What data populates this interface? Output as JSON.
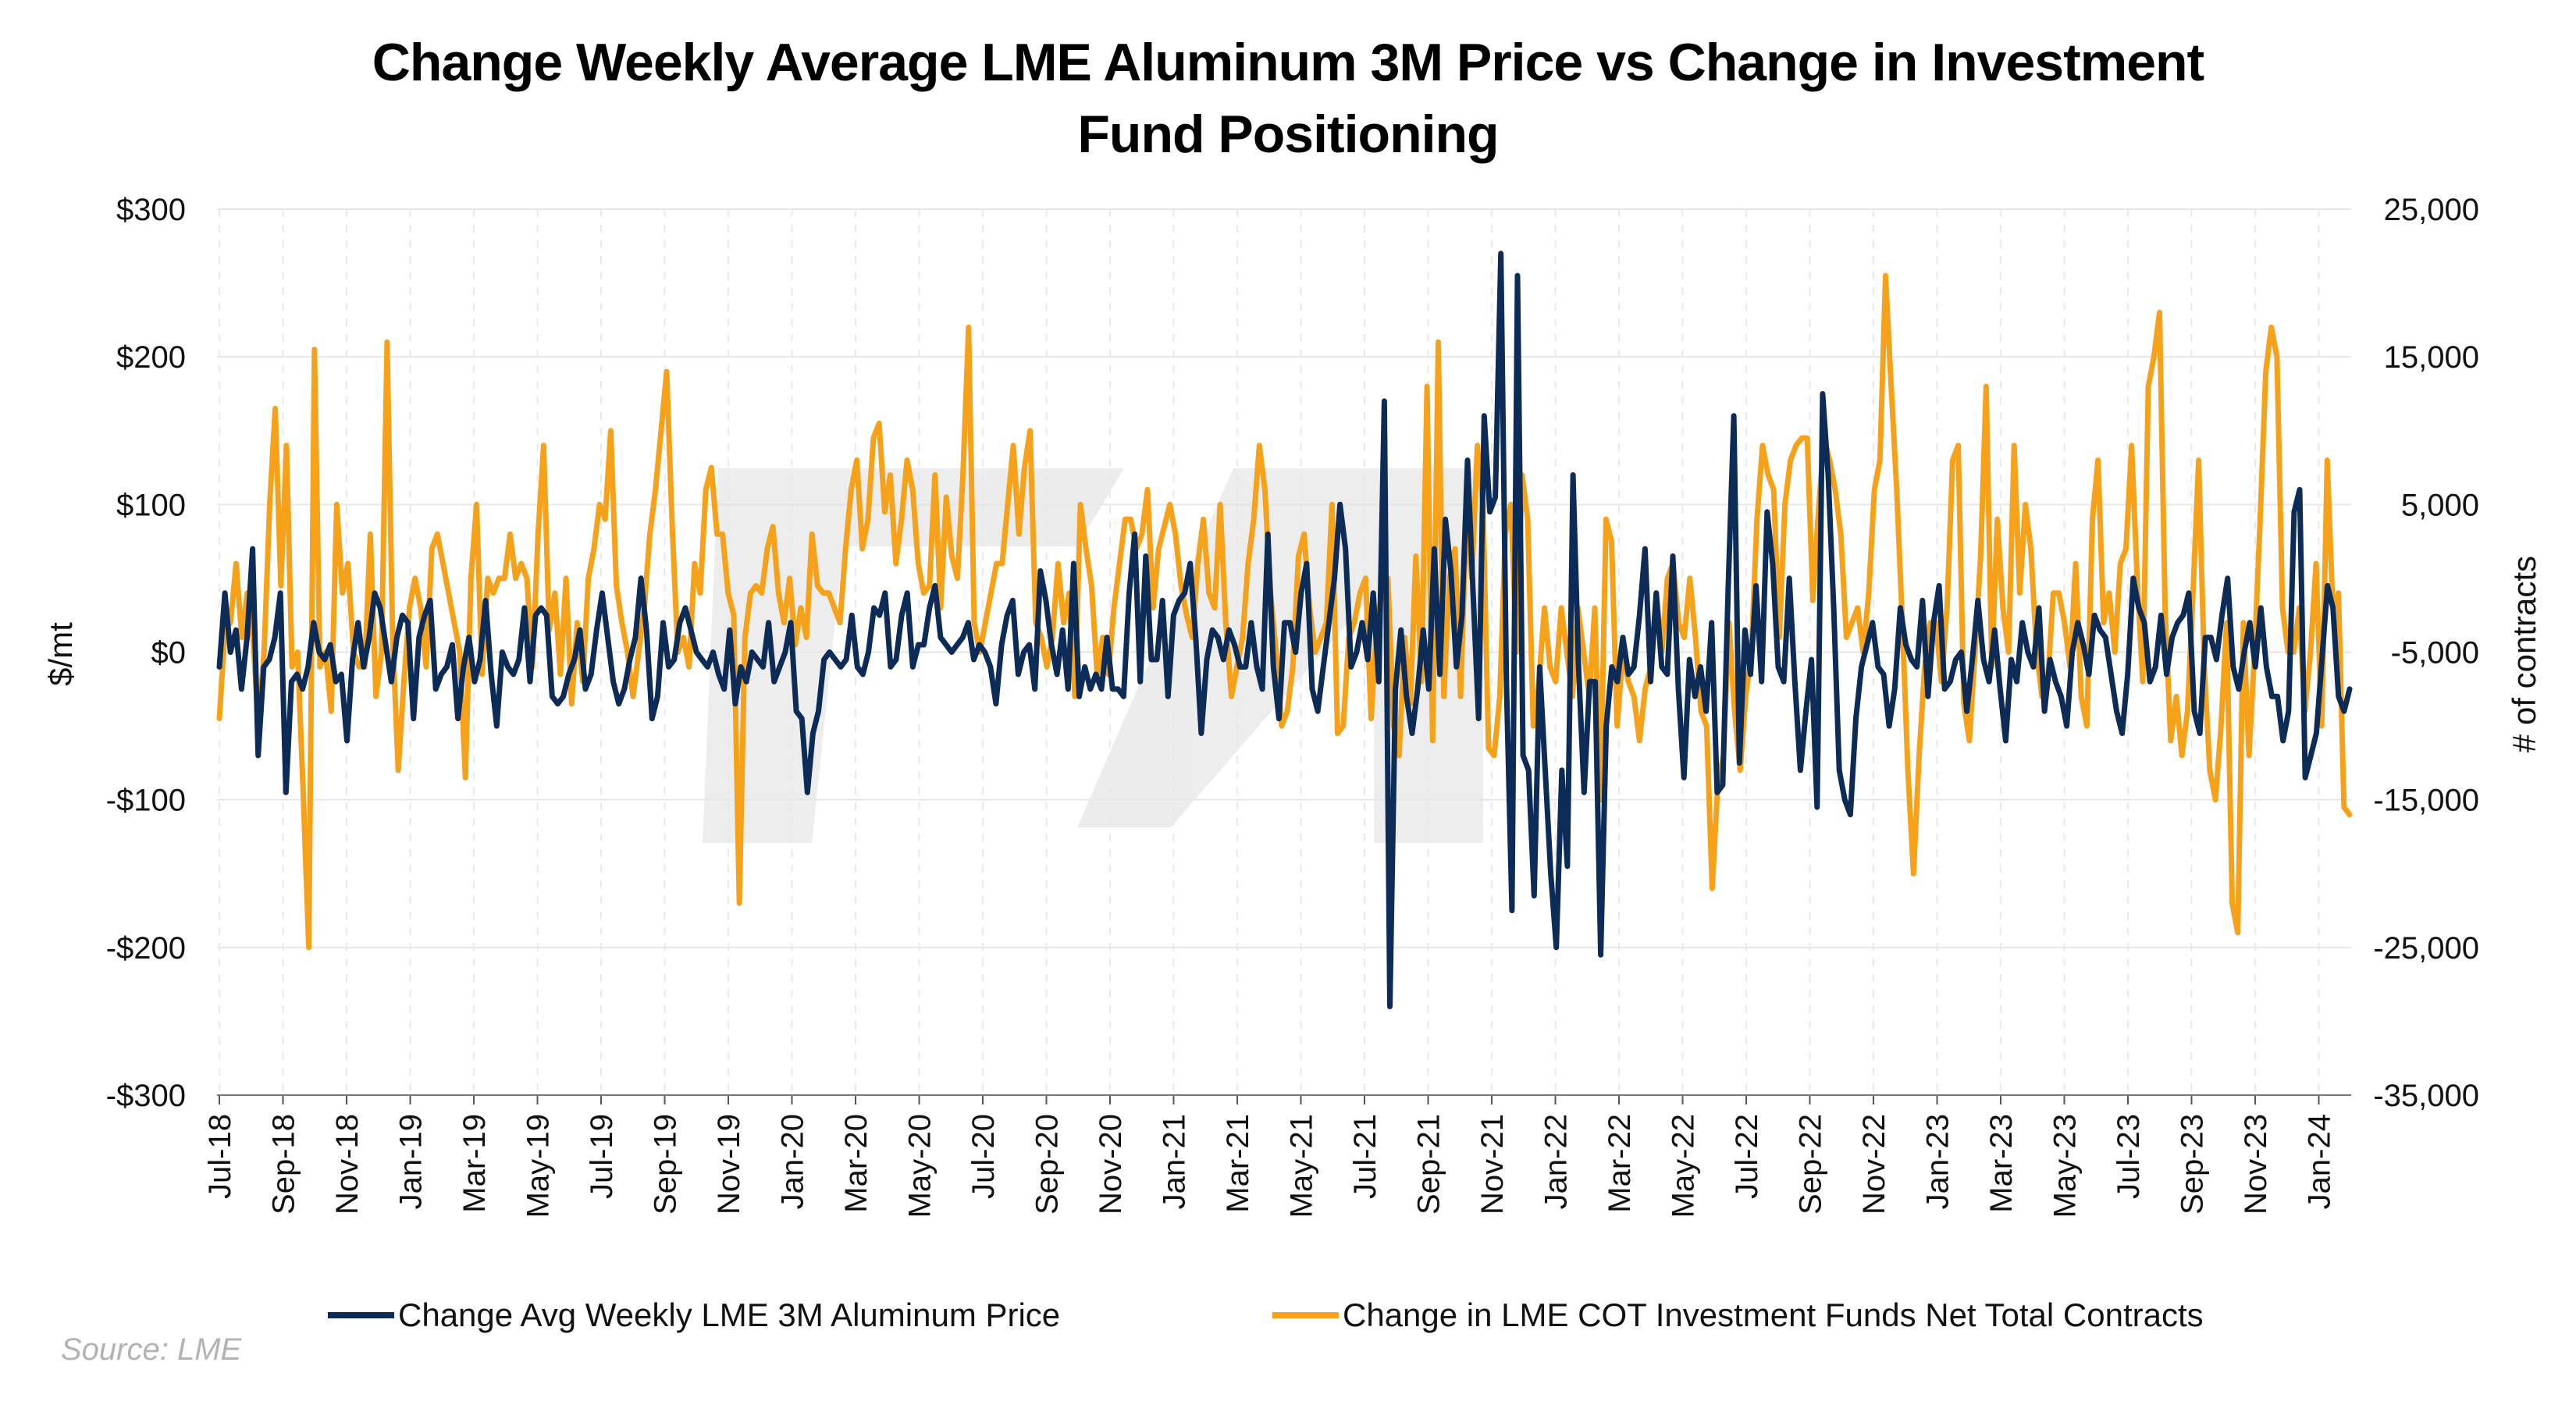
{
  "chart_data": {
    "type": "line",
    "title": "Change Weekly Average LME Aluminum 3M Price vs Change in Investment Fund Positioning",
    "title_lines": [
      "Change Weekly Average LME Aluminum 3M Price vs Change in Investment",
      "Fund Positioning"
    ],
    "ylabel_left": "$/mt",
    "ylabel_right": "# of contracts",
    "ylim_left": [
      -300,
      300
    ],
    "ylim_right": [
      -35000,
      25000
    ],
    "left_ticks": [
      300,
      200,
      100,
      0,
      -100,
      -200,
      -300
    ],
    "left_tick_labels": [
      "$300",
      "$200",
      "$100",
      "$0",
      "-$100",
      "-$200",
      "-$300"
    ],
    "right_ticks": [
      25000,
      15000,
      5000,
      -5000,
      -15000,
      -25000,
      -35000
    ],
    "right_tick_labels": [
      "25,000",
      "15,000",
      "5,000",
      "-5,000",
      "-15,000",
      "-25,000",
      "-35,000"
    ],
    "x_tick_labels": [
      "Jul-18",
      "Sep-18",
      "Nov-18",
      "Jan-19",
      "Mar-19",
      "May-19",
      "Jul-19",
      "Sep-19",
      "Nov-19",
      "Jan-20",
      "Mar-20",
      "May-20",
      "Jul-20",
      "Sep-20",
      "Nov-20",
      "Jan-21",
      "Mar-21",
      "May-21",
      "Jul-21",
      "Sep-21",
      "Nov-21",
      "Jan-22",
      "Mar-22",
      "May-22",
      "Jul-22",
      "Sep-22",
      "Nov-22",
      "Jan-23",
      "Mar-23",
      "May-23",
      "Jul-23",
      "Sep-23",
      "Nov-23",
      "Jan-24"
    ],
    "x_range": [
      "Jul-18",
      "Feb-24"
    ],
    "grid": true,
    "legend_position": "bottom",
    "series": [
      {
        "name": "Change Avg Weekly LME 3M Aluminum Price",
        "axis": "left",
        "color": "#0d2b57",
        "x_start": "Jul-18",
        "x_end": "Feb-24",
        "values": [
          -10,
          40,
          0,
          15,
          -25,
          10,
          70,
          -70,
          -10,
          -5,
          10,
          40,
          -95,
          -20,
          -15,
          -25,
          -10,
          20,
          0,
          -5,
          5,
          -20,
          -15,
          -60,
          -5,
          20,
          -10,
          10,
          40,
          30,
          5,
          -20,
          10,
          25,
          20,
          -45,
          10,
          25,
          35,
          -25,
          -15,
          -10,
          5,
          -45,
          -10,
          10,
          -20,
          -5,
          35,
          -15,
          -50,
          0,
          -10,
          -15,
          -5,
          30,
          -20,
          25,
          30,
          25,
          -30,
          -35,
          -30,
          -15,
          -5,
          15,
          -25,
          -15,
          15,
          40,
          10,
          -20,
          -35,
          -25,
          -5,
          10,
          50,
          15,
          -45,
          -30,
          20,
          -10,
          -5,
          20,
          30,
          15,
          0,
          -5,
          -10,
          0,
          -15,
          -25,
          15,
          -35,
          -10,
          -20,
          0,
          -5,
          -10,
          20,
          -20,
          -10,
          0,
          20,
          -40,
          -45,
          -95,
          -55,
          -40,
          -5,
          0,
          -5,
          -10,
          -5,
          25,
          -10,
          -15,
          0,
          30,
          25,
          40,
          -10,
          -5,
          25,
          40,
          -10,
          5,
          5,
          30,
          45,
          10,
          5,
          0,
          5,
          10,
          20,
          -5,
          5,
          0,
          -10,
          -35,
          5,
          25,
          35,
          -15,
          0,
          5,
          -25,
          55,
          35,
          5,
          -15,
          15,
          -25,
          60,
          -30,
          -10,
          -25,
          -15,
          -25,
          10,
          -25,
          -25,
          -30,
          40,
          80,
          -20,
          65,
          -5,
          -5,
          35,
          -30,
          25,
          35,
          40,
          60,
          10,
          -55,
          -5,
          15,
          10,
          -5,
          15,
          5,
          -10,
          -10,
          20,
          -10,
          -25,
          80,
          -10,
          -45,
          20,
          20,
          0,
          40,
          60,
          -25,
          -40,
          -10,
          20,
          50,
          100,
          70,
          -10,
          0,
          20,
          -5,
          40,
          -20,
          170,
          -240,
          -25,
          15,
          -30,
          -55,
          -25,
          15,
          -25,
          70,
          -15,
          90,
          55,
          -10,
          25,
          130,
          40,
          -45,
          160,
          95,
          105,
          270,
          -20,
          -175,
          255,
          -70,
          -80,
          -165,
          -10,
          -80,
          -150,
          -200,
          -80,
          -145,
          120,
          -10,
          -95,
          -20,
          -20,
          -205,
          -50,
          -10,
          -20,
          10,
          -15,
          -10,
          25,
          70,
          -20,
          40,
          -10,
          -15,
          65,
          -25,
          -85,
          -5,
          -30,
          -10,
          -40,
          20,
          -95,
          -90,
          45,
          160,
          -75,
          15,
          -15,
          45,
          -20,
          95,
          60,
          -10,
          -20,
          50,
          -20,
          -80,
          -40,
          -5,
          -105,
          175,
          120,
          30,
          -80,
          -100,
          -110,
          -45,
          -10,
          5,
          20,
          -10,
          -15,
          -50,
          -25,
          30,
          5,
          -5,
          -10,
          35,
          -30,
          20,
          45,
          -25,
          -20,
          -5,
          0,
          -40,
          -5,
          35,
          -5,
          -20,
          15,
          -25,
          -60,
          -5,
          -20,
          20,
          0,
          -10,
          30,
          -40,
          -5,
          -20,
          -30,
          -50,
          0,
          20,
          5,
          -15,
          25,
          15,
          10,
          -15,
          -40,
          -55,
          -15,
          50,
          30,
          20,
          -20,
          -10,
          25,
          -15,
          10,
          20,
          25,
          40,
          -40,
          -55,
          10,
          10,
          -5,
          25,
          50,
          -10,
          -25,
          0,
          20,
          -10,
          30,
          -10,
          -30,
          -30,
          -60,
          -40,
          95,
          110,
          -85,
          -70,
          -55,
          -5,
          45,
          30,
          -30,
          -40,
          -25
        ]
      },
      {
        "name": "Change in LME COT Investment Funds Net Total Contracts",
        "axis": "right",
        "color": "#f5a11a",
        "x_start": "Jul-18",
        "x_end": "Feb-24",
        "values": [
          -9500,
          -3500,
          -3000,
          1000,
          -4000,
          -1000,
          -4000,
          -10000,
          -5000,
          5000,
          11500,
          -500,
          9000,
          -6000,
          -5000,
          -14500,
          -25000,
          15500,
          -6000,
          -5000,
          -9000,
          5000,
          -1000,
          1000,
          -5000,
          -6000,
          -6000,
          3000,
          -8000,
          -5000,
          16000,
          -4000,
          -13000,
          -7000,
          -2000,
          0,
          -2000,
          -6000,
          2000,
          3000,
          1000,
          -1000,
          -3000,
          -5000,
          -13500,
          0,
          5000,
          -6500,
          0,
          -1000,
          0,
          0,
          3000,
          0,
          1000,
          0,
          -6000,
          3000,
          9000,
          -3500,
          -1000,
          -6500,
          0,
          -8500,
          -3000,
          -7000,
          0,
          2000,
          5000,
          4000,
          10000,
          -500,
          -3000,
          -5000,
          -8000,
          -5000,
          -2000,
          3000,
          6000,
          10000,
          14000,
          3500,
          -5000,
          -4000,
          -6000,
          1000,
          -1000,
          6000,
          7500,
          3000,
          3000,
          -1000,
          -2500,
          -22000,
          -4000,
          -1000,
          -500,
          -1000,
          2000,
          3500,
          -1000,
          -3000,
          0,
          -4500,
          -2000,
          -4000,
          3000,
          -500,
          -1000,
          -1000,
          -2000,
          -3000,
          2000,
          6000,
          8000,
          2000,
          4000,
          9500,
          10500,
          4500,
          7000,
          1000,
          4000,
          8000,
          6000,
          1000,
          -1000,
          -500,
          7000,
          -2000,
          5500,
          1500,
          0,
          7000,
          17000,
          -3000,
          -5000,
          -3000,
          -1000,
          1000,
          1000,
          5000,
          9000,
          3000,
          7500,
          10000,
          -3000,
          -4000,
          -6000,
          -4000,
          1000,
          -3000,
          -1000,
          -8000,
          5000,
          2000,
          -500,
          -6500,
          -4000,
          -6500,
          -2000,
          1000,
          4000,
          4000,
          2000,
          3000,
          6000,
          -2000,
          2000,
          3500,
          5000,
          3000,
          -500,
          -2500,
          -4000,
          1000,
          4000,
          -1000,
          -2000,
          5000,
          -3000,
          -8000,
          -6000,
          -4000,
          1000,
          4000,
          9000,
          6000,
          -1000,
          -5000,
          -10000,
          -9000,
          -6000,
          1500,
          3000,
          -2000,
          -5000,
          -4000,
          -3000,
          5000,
          -10500,
          -10000,
          -4000,
          -3000,
          -1000,
          0,
          -9500,
          -3000,
          -1000,
          0,
          -10000,
          -12000,
          -4000,
          -8500,
          1500,
          -7000,
          13000,
          -11000,
          16000,
          -8000,
          0,
          2000,
          -8000,
          4000,
          0,
          9000,
          5000,
          -11500,
          -12000,
          -8000,
          3000,
          5000,
          -5000,
          7000,
          4000,
          -10000,
          -7000,
          -2000,
          -6000,
          -7000,
          -2000,
          -5000,
          -8000,
          -2000,
          -5000,
          -8000,
          -2000,
          -15000,
          4000,
          2500,
          -10000,
          -5000,
          -7000,
          -8000,
          -11000,
          -7500,
          -6000,
          -1000,
          -5000,
          0,
          1000,
          -3000,
          -4000,
          0,
          -4000,
          -9000,
          -10000,
          -21000,
          -14000,
          -12000,
          -3000,
          -9000,
          -13000,
          -8000,
          -5000,
          4000,
          9000,
          7000,
          6000,
          -4000,
          5000,
          8000,
          9000,
          9500,
          9500,
          -1500,
          4500,
          9500,
          8000,
          6000,
          3000,
          -4000,
          -3000,
          -2000,
          -5000,
          -1000,
          6000,
          8000,
          20500,
          13000,
          6000,
          -3000,
          -13000,
          -20000,
          -12000,
          -6000,
          -3000,
          -3000,
          -7000,
          -2000,
          8000,
          9000,
          -8500,
          -11000,
          -5000,
          1500,
          13000,
          -6000,
          4000,
          -2000,
          -5000,
          9000,
          -1000,
          5000,
          2000,
          -5000,
          -8000,
          -7000,
          -1000,
          -1000,
          -3000,
          -6000,
          1000,
          -8000,
          -10000,
          4000,
          8000,
          -3000,
          -1000,
          -5000,
          1000,
          2000,
          9000,
          0,
          -7000,
          13000,
          15000,
          18000,
          -2000,
          -11000,
          -8000,
          -12000,
          -9000,
          -1000,
          8000,
          -6000,
          -13000,
          -15000,
          -10000,
          -3000,
          -22000,
          -24000,
          -3000,
          -12000,
          -5000,
          4000,
          14000,
          17000,
          15000,
          -2000,
          -5000,
          -5000,
          -2000,
          -9000,
          -5000,
          1000,
          -10000,
          8000,
          -2000,
          -1000,
          -15500,
          -16000
        ]
      }
    ]
  },
  "legend": {
    "items": [
      {
        "label": "Change Avg Weekly LME 3M Aluminum Price",
        "color": "#0d2b57"
      },
      {
        "label": "Change in LME COT Investment Funds Net Total Contracts",
        "color": "#f5a11a"
      }
    ]
  },
  "source_text": "Source: LME"
}
